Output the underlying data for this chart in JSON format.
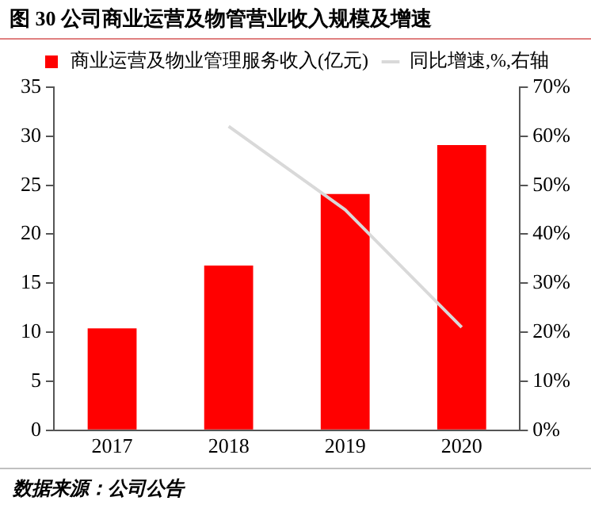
{
  "chart_data": {
    "type": "bar",
    "title": "图 30 公司商业运营及物管营业收入规模及增速",
    "categories": [
      "2017",
      "2018",
      "2019",
      "2020"
    ],
    "series": [
      {
        "name": "商业运营及物业管理服务收入(亿元)",
        "color": "#ff0000",
        "values": [
          10.4,
          16.8,
          24.1,
          29.1
        ]
      },
      {
        "name": "同比增速,%,右轴",
        "type": "line",
        "axis": "y2",
        "color": "#d9d9d9",
        "values": [
          null,
          62,
          45,
          21
        ]
      }
    ],
    "ylim": [
      0,
      35
    ],
    "yticks": [
      0,
      5,
      10,
      15,
      20,
      25,
      30,
      35
    ],
    "y2lim": [
      0,
      70
    ],
    "y2ticks": [
      {
        "value": 0,
        "label": "0%"
      },
      {
        "value": 10,
        "label": "10%"
      },
      {
        "value": 20,
        "label": "20%"
      },
      {
        "value": 30,
        "label": "30%"
      },
      {
        "value": 40,
        "label": "40%"
      },
      {
        "value": 50,
        "label": "50%"
      },
      {
        "value": 60,
        "label": "60%"
      },
      {
        "value": 70,
        "label": "70%"
      }
    ],
    "grid": false,
    "legend": "top",
    "marker": "none",
    "annotations": [
      "数据来源：公司公告"
    ]
  }
}
